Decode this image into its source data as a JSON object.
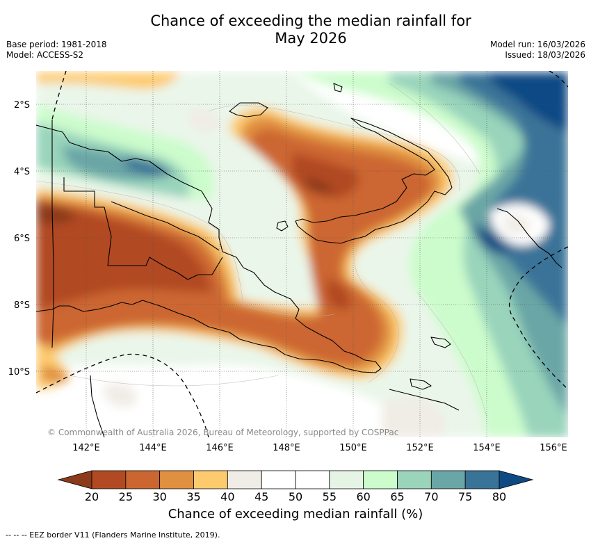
{
  "title_line1": "Chance of exceeding the median rainfall for",
  "title_line2": "May 2026",
  "base_period": "Base period: 1981-2018",
  "model": "Model: ACCESS-S2",
  "model_run": "Model run: 16/03/2026",
  "issued": "Issued: 18/03/2026",
  "copyright": "© Commonwealth of Australia 2026, Bureau of Meteorology, supported by COSPPac",
  "lat_labels": [
    "2°S",
    "4°S",
    "6°S",
    "8°S",
    "10°S"
  ],
  "lon_labels": [
    "142°E",
    "144°E",
    "146°E",
    "148°E",
    "150°E",
    "152°E",
    "154°E",
    "156°E"
  ],
  "colorbar": {
    "ticks": [
      "20",
      "25",
      "30",
      "35",
      "40",
      "45",
      "50",
      "55",
      "60",
      "65",
      "70",
      "75",
      "80"
    ],
    "colors": [
      "#8c3a1a",
      "#b14a22",
      "#cc6630",
      "#e09040",
      "#fdcb6e",
      "#f0ece6",
      "#ffffff",
      "#ffffff",
      "#e6f4e6",
      "#ccfccc",
      "#99d4bb",
      "#6aa6a6",
      "#3a7398",
      "#0d4a84"
    ],
    "label": "Chance of exceeding median rainfall (%)"
  },
  "footnote": "-- -- -- EEZ border V11 (Flanders Marine Institute, 2019)."
}
